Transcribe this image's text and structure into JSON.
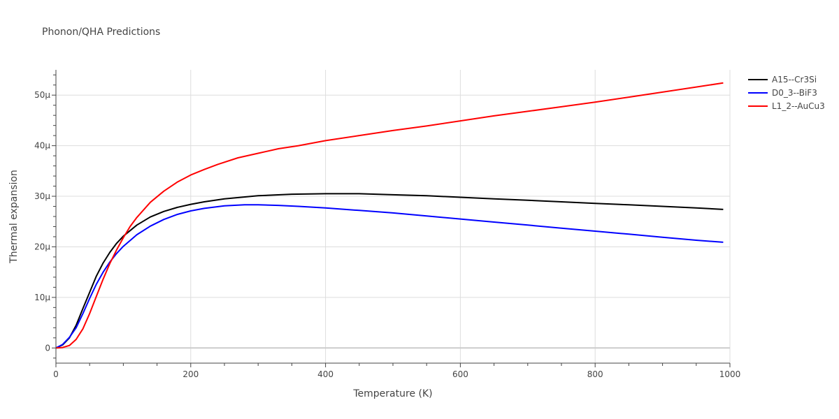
{
  "chart_data": {
    "type": "line",
    "title": "Phonon/QHA Predictions",
    "xlabel": "Temperature (K)",
    "ylabel": "Thermal expansion",
    "xlim": [
      0,
      1000
    ],
    "ylim": [
      -3e-06,
      5.5e-05
    ],
    "x_ticks": [
      0,
      200,
      400,
      600,
      800,
      1000
    ],
    "x_tick_labels": [
      "0",
      "200",
      "400",
      "600",
      "800",
      "1000"
    ],
    "y_ticks": [
      0,
      1e-05,
      2e-05,
      3e-05,
      4e-05,
      5e-05
    ],
    "y_tick_labels": [
      "0",
      "10μ",
      "20μ",
      "30μ",
      "40μ",
      "50μ"
    ],
    "grid": true,
    "legend_position": "top-right",
    "series": [
      {
        "name": "A15--Cr3Si",
        "color": "#000000",
        "x": [
          0,
          10,
          20,
          30,
          40,
          50,
          60,
          70,
          80,
          90,
          100,
          120,
          140,
          160,
          180,
          200,
          220,
          250,
          300,
          350,
          400,
          450,
          500,
          550,
          600,
          650,
          700,
          750,
          800,
          850,
          900,
          950,
          990
        ],
        "y": [
          0,
          6e-07,
          2e-06,
          4.5e-06,
          7.8e-06,
          1.1e-05,
          1.42e-05,
          1.68e-05,
          1.89e-05,
          2.07e-05,
          2.21e-05,
          2.43e-05,
          2.59e-05,
          2.7e-05,
          2.78e-05,
          2.84e-05,
          2.89e-05,
          2.95e-05,
          3.01e-05,
          3.04e-05,
          3.05e-05,
          3.05e-05,
          3.03e-05,
          3.01e-05,
          2.98e-05,
          2.95e-05,
          2.92e-05,
          2.89e-05,
          2.86e-05,
          2.83e-05,
          2.8e-05,
          2.77e-05,
          2.74e-05
        ]
      },
      {
        "name": "D0_3--BiF3",
        "color": "#0000ff",
        "x": [
          0,
          10,
          20,
          30,
          40,
          50,
          60,
          70,
          80,
          90,
          100,
          120,
          140,
          160,
          180,
          200,
          220,
          250,
          280,
          300,
          330,
          360,
          400,
          450,
          500,
          550,
          600,
          650,
          700,
          750,
          800,
          850,
          900,
          950,
          990
        ],
        "y": [
          0,
          7e-07,
          2.1e-06,
          4e-06,
          6.8e-06,
          9.8e-06,
          1.26e-05,
          1.5e-05,
          1.7e-05,
          1.87e-05,
          2.01e-05,
          2.24e-05,
          2.41e-05,
          2.54e-05,
          2.64e-05,
          2.71e-05,
          2.76e-05,
          2.81e-05,
          2.83e-05,
          2.83e-05,
          2.82e-05,
          2.8e-05,
          2.77e-05,
          2.72e-05,
          2.67e-05,
          2.61e-05,
          2.55e-05,
          2.49e-05,
          2.43e-05,
          2.37e-05,
          2.31e-05,
          2.25e-05,
          2.19e-05,
          2.13e-05,
          2.09e-05
        ]
      },
      {
        "name": "L1_2--AuCu3",
        "color": "#ff0000",
        "x": [
          0,
          10,
          20,
          30,
          40,
          50,
          60,
          70,
          80,
          90,
          100,
          110,
          120,
          140,
          160,
          180,
          200,
          220,
          240,
          270,
          300,
          330,
          360,
          400,
          450,
          500,
          550,
          600,
          650,
          700,
          750,
          800,
          850,
          900,
          950,
          990
        ],
        "y": [
          0,
          1e-07,
          5e-07,
          1.7e-06,
          3.8e-06,
          6.8e-06,
          1.02e-05,
          1.36e-05,
          1.67e-05,
          1.94e-05,
          2.18e-05,
          2.4e-05,
          2.58e-05,
          2.88e-05,
          3.1e-05,
          3.28e-05,
          3.42e-05,
          3.53e-05,
          3.63e-05,
          3.76e-05,
          3.85e-05,
          3.94e-05,
          4e-05,
          4.1e-05,
          4.2e-05,
          4.3e-05,
          4.39e-05,
          4.49e-05,
          4.59e-05,
          4.68e-05,
          4.77e-05,
          4.86e-05,
          4.96e-05,
          5.06e-05,
          5.16e-05,
          5.24e-05
        ]
      }
    ]
  }
}
